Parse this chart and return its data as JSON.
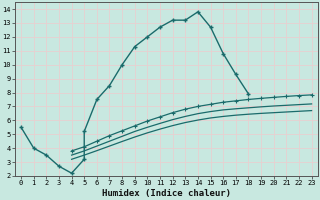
{
  "xlabel": "Humidex (Indice chaleur)",
  "xlim": [
    -0.5,
    23.5
  ],
  "ylim": [
    2,
    14.5
  ],
  "xticks": [
    0,
    1,
    2,
    3,
    4,
    5,
    6,
    7,
    8,
    9,
    10,
    11,
    12,
    13,
    14,
    15,
    16,
    17,
    18,
    19,
    20,
    21,
    22,
    23
  ],
  "yticks": [
    2,
    3,
    4,
    5,
    6,
    7,
    8,
    9,
    10,
    11,
    12,
    13,
    14
  ],
  "bg_color": "#c8e8e0",
  "grid_color": "#e8d0d0",
  "line_color": "#1a6b6b",
  "lines": [
    {
      "x": [
        0,
        1,
        2,
        3,
        4,
        5,
        5,
        6,
        7,
        8,
        9,
        10,
        11,
        12,
        13,
        14,
        15,
        16,
        17,
        18
      ],
      "y": [
        5.5,
        4.0,
        3.5,
        2.7,
        2.2,
        3.2,
        5.2,
        7.5,
        8.5,
        10.0,
        11.3,
        12.0,
        12.7,
        13.2,
        13.2,
        13.8,
        12.7,
        10.8,
        9.3,
        7.9
      ],
      "marker": "+",
      "markersize": 3.5,
      "linewidth": 1.0,
      "markeredgewidth": 1.0
    },
    {
      "x": [
        4,
        5,
        6,
        7,
        8,
        9,
        10,
        11,
        12,
        13,
        14,
        15,
        16,
        17,
        18,
        19,
        20,
        21,
        22,
        23
      ],
      "y": [
        3.8,
        4.1,
        4.5,
        4.9,
        5.25,
        5.6,
        5.95,
        6.25,
        6.55,
        6.8,
        7.0,
        7.15,
        7.3,
        7.4,
        7.5,
        7.58,
        7.65,
        7.72,
        7.78,
        7.83
      ],
      "marker": "+",
      "markersize": 3.0,
      "linewidth": 0.9,
      "markeredgewidth": 0.8
    },
    {
      "x": [
        4,
        5,
        6,
        7,
        8,
        9,
        10,
        11,
        12,
        13,
        14,
        15,
        16,
        17,
        18,
        19,
        20,
        21,
        22,
        23
      ],
      "y": [
        3.5,
        3.8,
        4.15,
        4.5,
        4.85,
        5.2,
        5.5,
        5.78,
        6.05,
        6.28,
        6.48,
        6.63,
        6.75,
        6.83,
        6.9,
        6.97,
        7.03,
        7.08,
        7.13,
        7.18
      ],
      "marker": null,
      "markersize": 0,
      "linewidth": 0.9,
      "markeredgewidth": 0.8
    },
    {
      "x": [
        4,
        5,
        6,
        7,
        8,
        9,
        10,
        11,
        12,
        13,
        14,
        15,
        16,
        17,
        18,
        19,
        20,
        21,
        22,
        23
      ],
      "y": [
        3.2,
        3.5,
        3.82,
        4.15,
        4.48,
        4.8,
        5.1,
        5.37,
        5.62,
        5.84,
        6.02,
        6.17,
        6.28,
        6.37,
        6.44,
        6.5,
        6.55,
        6.6,
        6.65,
        6.7
      ],
      "marker": null,
      "markersize": 0,
      "linewidth": 0.9,
      "markeredgewidth": 0.8
    }
  ]
}
